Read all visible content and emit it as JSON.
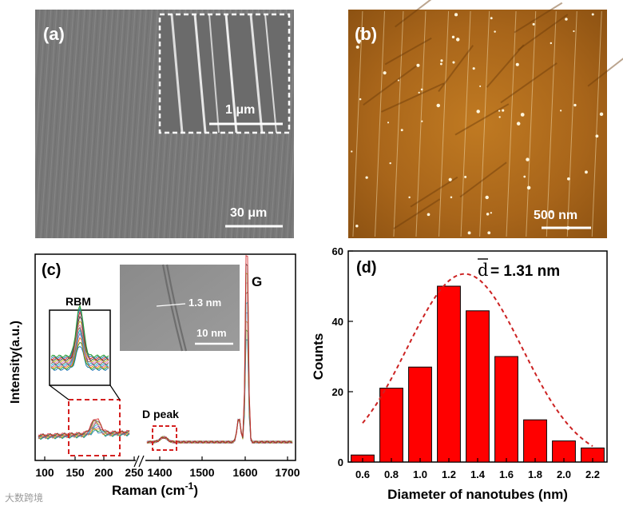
{
  "panels": {
    "a": {
      "label": "(a)",
      "scale_bar": "30 μm",
      "inset_scale_bar": "1 μm"
    },
    "b": {
      "label": "(b)",
      "scale_bar": "500 nm"
    },
    "c": {
      "label": "(c)",
      "ylabel": "Intensity(a.u.)",
      "xlabel_main": "Raman (cm",
      "xlabel_exp": "-1",
      "xlabel_close": ")",
      "inset_rbm_label": "RBM",
      "d_peak_label": "D peak",
      "g_label": "G",
      "tem_inset_measure": "1.3 nm",
      "tem_inset_scale_bar": "10 nm",
      "xticks": [
        "100",
        "150",
        "200",
        "250",
        "1400",
        "1500",
        "1600",
        "1700"
      ]
    },
    "d": {
      "label": "(d)",
      "annotation_symbol": "d",
      "annotation_value": "= 1.31 nm"
    }
  },
  "chart_data": {
    "type": "bar",
    "x": [
      0.6,
      0.8,
      1.0,
      1.2,
      1.4,
      1.6,
      1.8,
      2.0,
      2.2
    ],
    "xtick_labels": [
      "0.6",
      "0.8",
      "1.0",
      "1.2",
      "1.4",
      "1.6",
      "1.8",
      "2.0",
      "2.2"
    ],
    "values": [
      2,
      21,
      27,
      50,
      43,
      30,
      12,
      6,
      4
    ],
    "xlabel": "Diameter of nanotubes (nm)",
    "ylabel": "Counts",
    "ylim": [
      0,
      60
    ],
    "yticks": [
      "0",
      "20",
      "40",
      "60"
    ],
    "bar_color": "#ff0000",
    "fit": {
      "type": "gaussian",
      "mean": 1.31,
      "peak": 53.5,
      "sigma": 0.4,
      "color": "#cc2222",
      "style": "dashed"
    }
  },
  "watermark": "大数跨境",
  "colors": {
    "sem_gray": "#7a7a7a",
    "afm_brown": "#b8741e",
    "red_box": "#d42020"
  }
}
